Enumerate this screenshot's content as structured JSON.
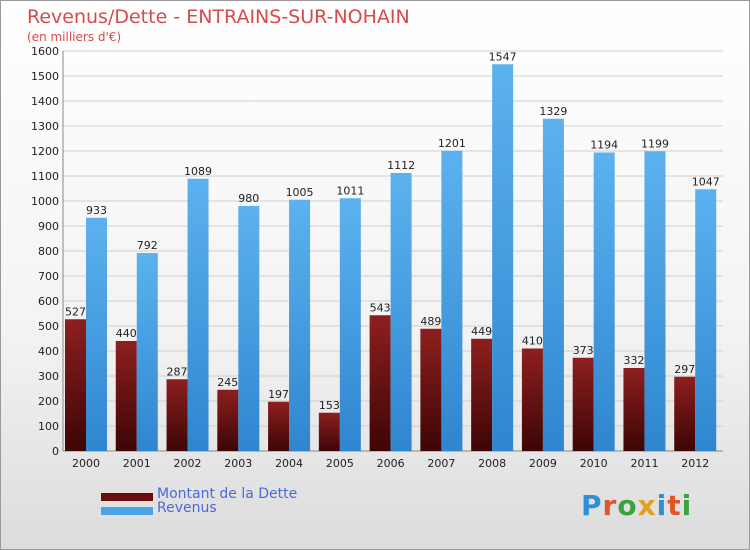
{
  "chart_title": "Revenus/Dette - ENTRAINS-SUR-NOHAIN",
  "chart_subtitle": "(en milliers d'€)",
  "brand": "Proxiti",
  "colors": {
    "debt": "#6b0d0d",
    "revenue": "#4aa3e6",
    "title": "#d64a4a",
    "legend_text": "#4a6ad8"
  },
  "legend": [
    {
      "label": "Montant de la Dette",
      "color": "#6b0d0d"
    },
    {
      "label": "Revenus",
      "color": "#4aa3e6"
    }
  ],
  "chart_data": {
    "type": "bar",
    "title": "Revenus/Dette - ENTRAINS-SUR-NOHAIN",
    "subtitle": "(en milliers d'€)",
    "categories": [
      "2000",
      "2001",
      "2002",
      "2003",
      "2004",
      "2005",
      "2006",
      "2007",
      "2008",
      "2009",
      "2010",
      "2011",
      "2012"
    ],
    "series": [
      {
        "name": "Montant de la Dette",
        "values": [
          527,
          440,
          287,
          245,
          197,
          153,
          543,
          489,
          449,
          410,
          373,
          332,
          297
        ]
      },
      {
        "name": "Revenus",
        "values": [
          933,
          792,
          1089,
          980,
          1005,
          1011,
          1112,
          1201,
          1547,
          1329,
          1194,
          1199,
          1047
        ]
      }
    ],
    "ylim": [
      0,
      1600
    ],
    "yticks": [
      0,
      100,
      200,
      300,
      400,
      500,
      600,
      700,
      800,
      900,
      1000,
      1100,
      1200,
      1300,
      1400,
      1500,
      1600
    ],
    "grid": true,
    "legend_position": "bottom-left"
  }
}
